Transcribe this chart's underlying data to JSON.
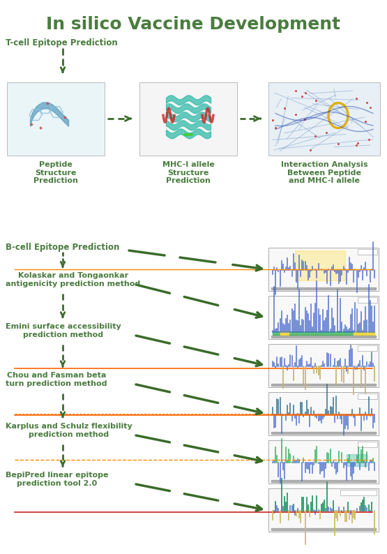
{
  "title": "In silico Vaccine Development",
  "title_color": "#4a7c3f",
  "title_fontsize": 18,
  "background_color": "#ffffff",
  "green_dark": "#3a6b2a",
  "green_medium": "#4a7c3f",
  "label_tcell": "T-cell Epitope Prediction",
  "label_peptide": "Peptide\nStructure\nPrediction",
  "label_mhc": "MHC-I allele\nStructure\nPrediction",
  "label_interaction": "Interaction Analysis\nBetween Peptide\nand MHC-I allele",
  "label_bcell": "B-cell Epitope Prediction",
  "label_kolaskar": "Kolaskar and Tongaonkar\nantigenicity prediction method",
  "label_emini": "Emini surface accessibility\nprediction method",
  "label_chou": "Chou and Fasman beta\nturn prediction method",
  "label_karplus": "Karplus and Schulz flexibility\nprediction method",
  "label_bepipred": "BepiPred linear epitope\nprediction tool 2.0"
}
